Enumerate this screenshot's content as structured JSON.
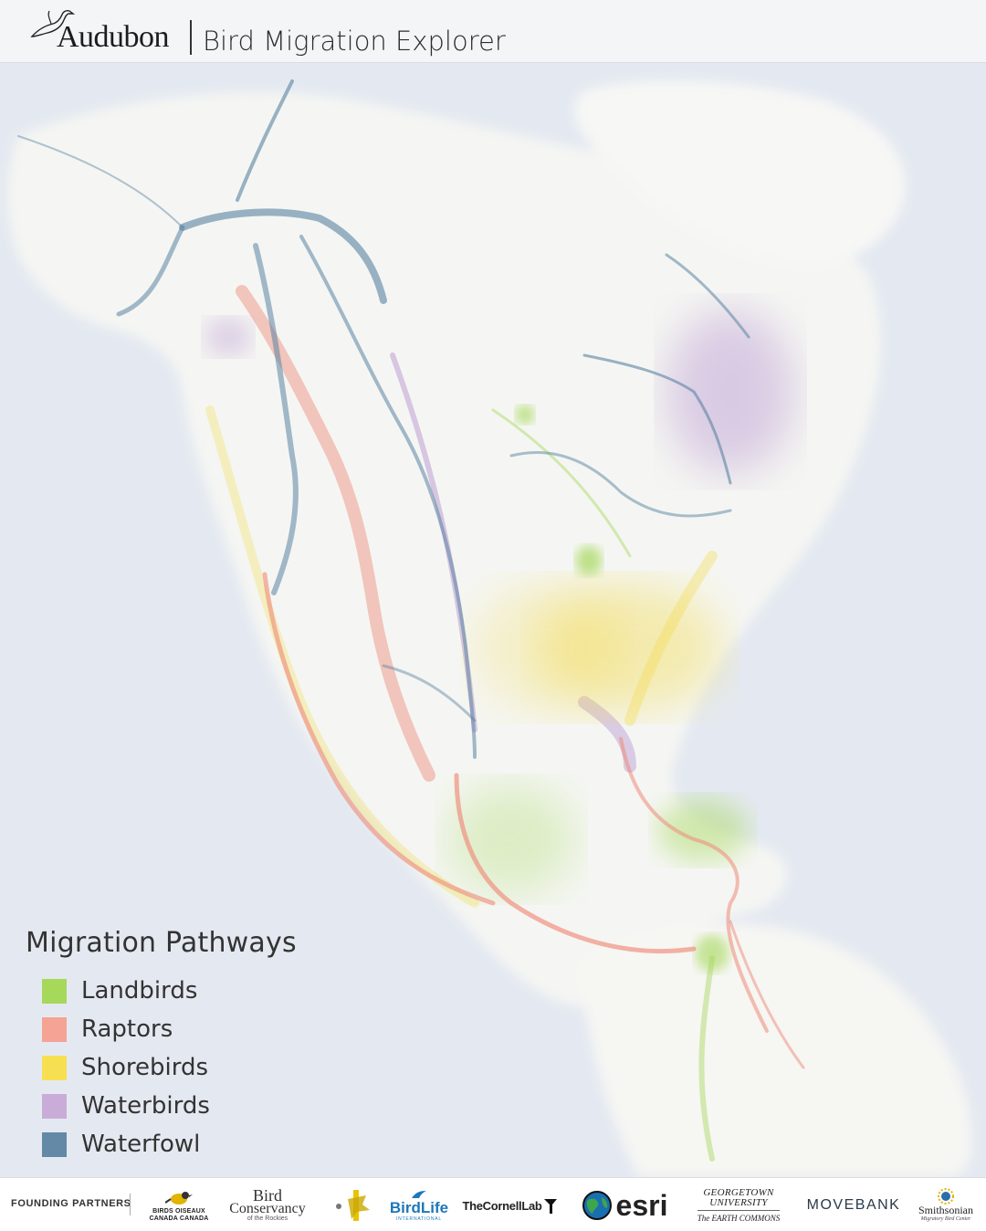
{
  "header": {
    "brand": "Audubon",
    "app_title": "Bird Migration Explorer"
  },
  "legend": {
    "title": "Migration Pathways",
    "items": [
      {
        "label": "Landbirds",
        "color": "#a6d85a"
      },
      {
        "label": "Raptors",
        "color": "#f4a394"
      },
      {
        "label": "Shorebirds",
        "color": "#f7df52"
      },
      {
        "label": "Waterbirds",
        "color": "#c9add8"
      },
      {
        "label": "Waterfowl",
        "color": "#6389a6"
      }
    ]
  },
  "map": {
    "colors": {
      "land": "#f6f6f3",
      "ocean": "#e3e8f0",
      "landbirds": "#a6d85a",
      "raptors": "#ee8a78",
      "shorebirds": "#f3d948",
      "waterbirds": "#b896d0",
      "waterfowl": "#5a83a2"
    }
  },
  "footer": {
    "partners_label": "FOUNDING PARTNERS",
    "partners": {
      "birds_canada_1": "BIRDS   OISEAUX",
      "birds_canada_2": "CANADA   CANADA",
      "bcr_1": "Bird",
      "bcr_2": "Conservancy",
      "bcr_3": "of the Rockies",
      "birdlife_1": "BirdLife",
      "birdlife_2": "INTERNATIONAL",
      "cornell": "TheCornellLab",
      "esri": "esri",
      "georgetown_1": "GEORGETOWN",
      "georgetown_2": "UNIVERSITY",
      "georgetown_3": "The EARTH COMMONS",
      "movebank": "MOVEBANK",
      "smithsonian_1": "Smithsonian",
      "smithsonian_2": "Migratory Bird Center"
    }
  }
}
